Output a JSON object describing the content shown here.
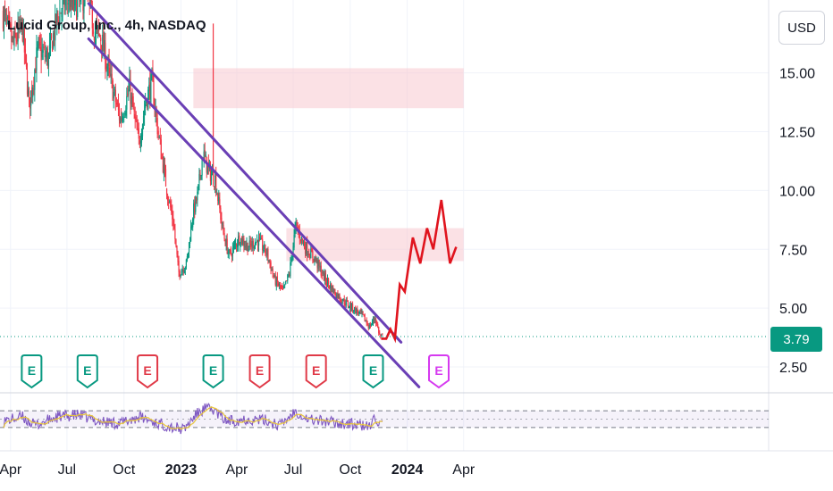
{
  "header": {
    "title": "Lucid Group, Inc., 4h, NASDAQ",
    "currency": "USD"
  },
  "last_price": "3.79",
  "colors": {
    "up": "#089981",
    "down": "#f23645",
    "channel": "#6a3fb5",
    "projection": "#e0141e",
    "zone": "#f8c9cf",
    "rsi_line": "#7e57c2",
    "rsi_ma": "#e8c53a",
    "earnings_green": "#089981",
    "earnings_red": "#e03a48",
    "earnings_purple": "#d63af0"
  },
  "chart_data": {
    "type": "candlestick",
    "y_axis": {
      "ticks": [
        "2.50",
        "5.00",
        "7.50",
        "10.00",
        "12.50",
        "15.00"
      ],
      "range": [
        1.4,
        18.1
      ]
    },
    "x_axis": {
      "ticks": [
        "Apr",
        "Jul",
        "Oct",
        "2023",
        "Apr",
        "Jul",
        "Oct",
        "2024",
        "Apr"
      ],
      "bold": [
        "2023",
        "2024"
      ]
    },
    "price_path": [
      [
        "2022-03-20",
        17.5
      ],
      [
        "2022-04-05",
        16.2
      ],
      [
        "2022-04-20",
        17.0
      ],
      [
        "2022-05-01",
        13.6
      ],
      [
        "2022-05-15",
        16.0
      ],
      [
        "2022-06-01",
        15.6
      ],
      [
        "2022-06-15",
        17.3
      ],
      [
        "2022-07-01",
        18.2
      ],
      [
        "2022-07-15",
        17.8
      ],
      [
        "2022-08-01",
        18.4
      ],
      [
        "2022-08-15",
        16.8
      ],
      [
        "2022-08-25",
        16.5
      ],
      [
        "2022-09-10",
        14.6
      ],
      [
        "2022-09-25",
        13.0
      ],
      [
        "2022-10-10",
        14.3
      ],
      [
        "2022-10-25",
        12.0
      ],
      [
        "2022-11-05",
        13.8
      ],
      [
        "2022-11-15",
        14.6
      ],
      [
        "2022-11-25",
        12.5
      ],
      [
        "2022-12-10",
        9.9
      ],
      [
        "2022-12-20",
        8.6
      ],
      [
        "2022-12-28",
        6.5
      ],
      [
        "2023-01-10",
        6.9
      ],
      [
        "2023-01-20",
        9.0
      ],
      [
        "2023-01-28",
        9.8
      ],
      [
        "2023-02-05",
        11.6
      ],
      [
        "2023-02-15",
        10.8
      ],
      [
        "2023-02-25",
        10.5
      ],
      [
        "2023-03-10",
        8.2
      ],
      [
        "2023-03-20",
        7.2
      ],
      [
        "2023-04-05",
        8.0
      ],
      [
        "2023-04-20",
        7.6
      ],
      [
        "2023-05-05",
        7.9
      ],
      [
        "2023-05-20",
        7.3
      ],
      [
        "2023-06-01",
        6.2
      ],
      [
        "2023-06-15",
        5.7
      ],
      [
        "2023-06-25",
        6.5
      ],
      [
        "2023-07-05",
        8.5
      ],
      [
        "2023-07-20",
        7.6
      ],
      [
        "2023-08-05",
        7.1
      ],
      [
        "2023-08-20",
        6.3
      ],
      [
        "2023-09-05",
        5.7
      ],
      [
        "2023-09-20",
        5.3
      ],
      [
        "2023-10-05",
        5.0
      ],
      [
        "2023-10-20",
        4.7
      ],
      [
        "2023-11-01",
        4.2
      ],
      [
        "2023-11-10",
        4.6
      ],
      [
        "2023-11-18",
        3.8
      ],
      [
        "2023-11-22",
        3.79
      ]
    ],
    "spike": {
      "date": "2023-02-22",
      "high": 17.1
    },
    "channel_lines": [
      {
        "from": [
          "2022-08-05",
          17.95
        ],
        "to": [
          "2023-12-22",
          3.55
        ]
      },
      {
        "from": [
          "2022-08-05",
          16.45
        ],
        "to": [
          "2024-01-20",
          1.65
        ]
      }
    ],
    "resistance_zones": [
      {
        "from": "2023-01-21",
        "to": "2024-04-01",
        "y_low": 13.5,
        "y_high": 15.2
      },
      {
        "from": "2023-06-20",
        "to": "2024-04-01",
        "y_low": 7.0,
        "y_high": 8.4
      }
    ],
    "projection_path": [
      [
        "2023-11-20",
        3.7
      ],
      [
        "2023-11-28",
        3.7
      ],
      [
        "2023-12-05",
        4.1
      ],
      [
        "2023-12-12",
        3.7
      ],
      [
        "2023-12-20",
        6.0
      ],
      [
        "2023-12-28",
        5.7
      ],
      [
        "2024-01-10",
        8.0
      ],
      [
        "2024-01-22",
        6.9
      ],
      [
        "2024-02-02",
        8.4
      ],
      [
        "2024-02-12",
        7.5
      ],
      [
        "2024-02-25",
        9.6
      ],
      [
        "2024-03-10",
        6.9
      ],
      [
        "2024-03-20",
        7.6
      ]
    ],
    "earnings_markers": [
      {
        "date": "2022-05-05",
        "label": "E",
        "color": "green"
      },
      {
        "date": "2022-08-03",
        "label": "E",
        "color": "green"
      },
      {
        "date": "2022-11-08",
        "label": "E",
        "color": "red"
      },
      {
        "date": "2023-02-22",
        "label": "E",
        "color": "green"
      },
      {
        "date": "2023-05-08",
        "label": "E",
        "color": "red"
      },
      {
        "date": "2023-08-07",
        "label": "E",
        "color": "red"
      },
      {
        "date": "2023-11-07",
        "label": "E",
        "color": "green"
      },
      {
        "date": "2024-02-21",
        "label": "E",
        "color": "purple"
      }
    ],
    "rsi": {
      "bands": [
        70,
        30
      ],
      "range": [
        0,
        100
      ],
      "path": [
        [
          "2022-03-20",
          45
        ],
        [
          "2022-04-20",
          55
        ],
        [
          "2022-05-10",
          35
        ],
        [
          "2022-06-15",
          55
        ],
        [
          "2022-07-20",
          60
        ],
        [
          "2022-08-20",
          45
        ],
        [
          "2022-09-25",
          40
        ],
        [
          "2022-10-25",
          55
        ],
        [
          "2022-11-25",
          40
        ],
        [
          "2022-12-20",
          30
        ],
        [
          "2023-01-05",
          25
        ],
        [
          "2023-01-25",
          60
        ],
        [
          "2023-02-08",
          75
        ],
        [
          "2023-02-22",
          72
        ],
        [
          "2023-03-15",
          45
        ],
        [
          "2023-04-15",
          50
        ],
        [
          "2023-05-15",
          48
        ],
        [
          "2023-06-10",
          35
        ],
        [
          "2023-07-05",
          70
        ],
        [
          "2023-07-25",
          50
        ],
        [
          "2023-08-20",
          45
        ],
        [
          "2023-09-20",
          40
        ],
        [
          "2023-10-20",
          35
        ],
        [
          "2023-11-05",
          30
        ],
        [
          "2023-11-08",
          65
        ],
        [
          "2023-11-15",
          40
        ],
        [
          "2023-11-22",
          35
        ]
      ]
    }
  }
}
